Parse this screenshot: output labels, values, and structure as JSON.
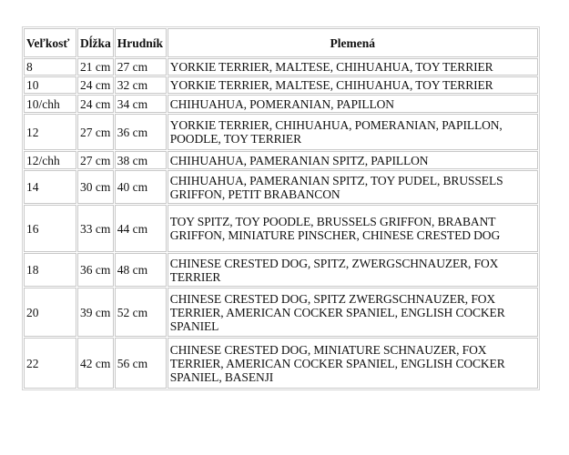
{
  "table": {
    "headers": [
      "Veľkosť",
      "Dĺžka",
      "Hrudník",
      "Plemená"
    ],
    "rows": [
      {
        "size": "8",
        "length": "21 cm",
        "chest": "27 cm",
        "breeds": "YORKIE TERRIER, MALTESE, CHIHUAHUA, TOY TERRIER"
      },
      {
        "size": "10",
        "length": "24 cm",
        "chest": "32 cm",
        "breeds": "YORKIE TERRIER, MALTESE, CHIHUAHUA, TOY TERRIER"
      },
      {
        "size": "10/chh",
        "length": "24 cm",
        "chest": "34 cm",
        "breeds": "CHIHUAHUA, POMERANIAN, PAPILLON"
      },
      {
        "size": "12",
        "length": "27 cm",
        "chest": "36 cm",
        "breeds": "YORKIE TERRIER, CHIHUAHUA, POMERANIAN, PAPILLON, POODLE, TOY TERRIER"
      },
      {
        "size": "12/chh",
        "length": "27 cm",
        "chest": "38 cm",
        "breeds": "CHIHUAHUA, PAMERANIAN SPITZ, PAPILLON"
      },
      {
        "size": "14",
        "length": "30 cm",
        "chest": "40 cm",
        "breeds": "CHIHUAHUA, PAMERANIAN SPITZ, TOY PUDEL, BRUSSELS GRIFFON, PETIT BRABANCON"
      },
      {
        "size": "16",
        "length": "33 cm",
        "chest": "44 cm",
        "breeds": "TOY SPITZ, TOY POODLE, BRUSSELS GRIFFON, BRABANT GRIFFON, MINIATURE PINSCHER, CHINESE CRESTED DOG"
      },
      {
        "size": "18",
        "length": "36 cm",
        "chest": "48 cm",
        "breeds": "CHINESE CRESTED DOG, SPITZ,  ZWERGSCHNAUZER, FOX TERRIER"
      },
      {
        "size": "20",
        "length": "39 cm",
        "chest": "52 cm",
        "breeds": "CHINESE CRESTED DOG, SPITZ ZWERGSCHNAUZER, FOX TERRIER, AMERICAN COCKER SPANIEL, ENGLISH COCKER SPANIEL"
      },
      {
        "size": "22",
        "length": "42 cm",
        "chest": "56 cm",
        "breeds": "CHINESE CRESTED DOG, MINIATURE SCHNAUZER, FOX TERRIER, AMERICAN COCKER SPANIEL, ENGLISH COCKER SPANIEL, BASENJI"
      }
    ]
  }
}
